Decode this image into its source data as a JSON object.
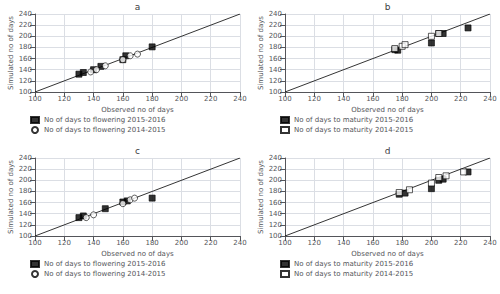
{
  "chart_data": [
    {
      "type": "scatter",
      "title": "a",
      "xlabel": "Observed no of days",
      "ylabel": "Simulated no of days",
      "xlim": [
        100,
        240
      ],
      "ylim": [
        100,
        240
      ],
      "xticks": [
        100,
        120,
        140,
        160,
        180,
        200,
        220,
        240
      ],
      "yticks": [
        100,
        120,
        140,
        160,
        180,
        200,
        220,
        240
      ],
      "grid": true,
      "legend": "below",
      "series": [
        {
          "name": "No of days to flowering 2015-2016",
          "x": [
            130,
            133,
            140,
            145,
            160,
            162,
            180
          ],
          "values": [
            132,
            135,
            140,
            146,
            158,
            165,
            181
          ],
          "marker": "square",
          "color": "#000000"
        },
        {
          "name": "No of days to flowering 2014-2015",
          "x": [
            138,
            142,
            148,
            160,
            165,
            170
          ],
          "values": [
            136,
            140,
            147,
            158,
            165,
            168
          ],
          "marker": "circle-open",
          "color": "#000000"
        }
      ]
    },
    {
      "type": "scatter",
      "title": "b",
      "xlabel": "Observed no of days",
      "ylabel": "Simulated no of days",
      "xlim": [
        100,
        240
      ],
      "ylim": [
        100,
        240
      ],
      "xticks": [
        100,
        120,
        140,
        160,
        180,
        200,
        220,
        240
      ],
      "yticks": [
        100,
        120,
        140,
        160,
        180,
        200,
        220,
        240
      ],
      "grid": true,
      "legend": "below",
      "series": [
        {
          "name": "No of days to maturity 2015-2016",
          "x": [
            175,
            177,
            200,
            205,
            208,
            225
          ],
          "values": [
            176,
            175,
            188,
            205,
            205,
            215
          ],
          "marker": "square",
          "color": "#000000"
        },
        {
          "name": "No of days to maturity 2014-2015",
          "x": [
            175,
            180,
            182,
            200,
            205
          ],
          "values": [
            178,
            182,
            185,
            200,
            205
          ],
          "marker": "square-open",
          "color": "#000000"
        }
      ]
    },
    {
      "type": "scatter",
      "title": "c",
      "xlabel": "Observed no of days",
      "ylabel": "Simulated no of days",
      "xlim": [
        100,
        240
      ],
      "ylim": [
        100,
        240
      ],
      "xticks": [
        100,
        120,
        140,
        160,
        180,
        200,
        220,
        240
      ],
      "yticks": [
        100,
        120,
        140,
        160,
        180,
        200,
        220,
        240
      ],
      "grid": true,
      "legend": "below",
      "series": [
        {
          "name": "No of days to flowering 2015-2016",
          "x": [
            130,
            133,
            148,
            160,
            163,
            180
          ],
          "values": [
            133,
            136,
            149,
            161,
            163,
            168
          ],
          "marker": "square",
          "color": "#000000"
        },
        {
          "name": "No of days to flowering 2014-2015",
          "x": [
            135,
            140,
            160,
            165,
            168
          ],
          "values": [
            133,
            138,
            158,
            165,
            168
          ],
          "marker": "circle-open",
          "color": "#000000"
        }
      ]
    },
    {
      "type": "scatter",
      "title": "d",
      "xlabel": "Observed no of days",
      "ylabel": "Simulated no of days",
      "xlim": [
        100,
        240
      ],
      "ylim": [
        100,
        240
      ],
      "xticks": [
        100,
        120,
        140,
        160,
        180,
        200,
        220,
        240
      ],
      "yticks": [
        100,
        120,
        140,
        160,
        180,
        200,
        220,
        240
      ],
      "grid": true,
      "legend": "below",
      "series": [
        {
          "name": "No of days to maturity 2015-2016",
          "x": [
            178,
            182,
            200,
            205,
            208,
            225
          ],
          "values": [
            175,
            177,
            185,
            200,
            202,
            215
          ],
          "marker": "square",
          "color": "#000000"
        },
        {
          "name": "No of days to maturity 2014-2015",
          "x": [
            178,
            185,
            200,
            205,
            210,
            222
          ],
          "values": [
            178,
            183,
            195,
            205,
            208,
            215
          ],
          "marker": "square-open",
          "color": "#000000"
        }
      ]
    }
  ]
}
